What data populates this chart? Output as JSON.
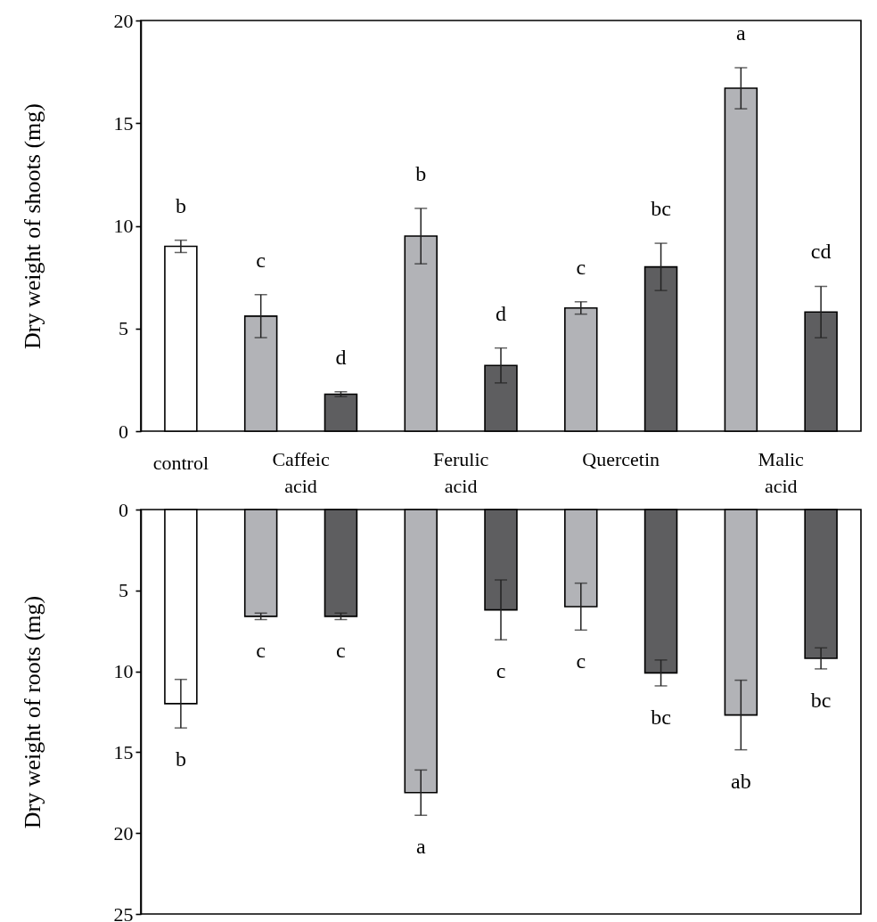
{
  "chart_data": [
    {
      "type": "bar",
      "ylabel": "Dry weight of shoots (mg)",
      "categories": [
        null,
        null,
        null,
        null,
        null,
        null,
        null,
        null,
        null
      ],
      "values": [
        9.0,
        5.6,
        1.8,
        9.5,
        3.2,
        6.0,
        8.0,
        16.7,
        5.8
      ],
      "colors": [
        "#ffffff",
        "#b2b3b7",
        "#5e5e60",
        "#b2b3b7",
        "#5e5e60",
        "#b2b3b7",
        "#5e5e60",
        "#b2b3b7",
        "#5e5e60"
      ],
      "errors": [
        0.3,
        1.05,
        0.12,
        1.35,
        0.85,
        0.3,
        1.15,
        1.0,
        1.25
      ],
      "value_labels": [
        "b",
        "c",
        "d",
        "b",
        "d",
        "c",
        "bc",
        "a",
        "cd"
      ],
      "ylim": [
        0,
        20
      ],
      "yticks": [
        0,
        5,
        10,
        15,
        20
      ],
      "tick_labels": "y",
      "annotations": [
        "control",
        "Caffeic acid",
        "Ferulic acid",
        "Quercetin",
        "Malic acid"
      ]
    },
    {
      "type": "bar",
      "ylabel": "Dry weight of roots (mg)",
      "categories": [
        null,
        null,
        null,
        null,
        null,
        null,
        null,
        null,
        null
      ],
      "values": [
        12.0,
        6.6,
        6.6,
        17.5,
        6.2,
        6.0,
        10.1,
        12.7,
        9.2
      ],
      "colors": [
        "#ffffff",
        "#b2b3b7",
        "#5e5e60",
        "#b2b3b7",
        "#5e5e60",
        "#b2b3b7",
        "#5e5e60",
        "#b2b3b7",
        "#5e5e60"
      ],
      "errors": [
        1.5,
        0.2,
        0.2,
        1.4,
        1.85,
        1.45,
        0.8,
        2.15,
        0.65
      ],
      "value_labels": [
        "b",
        "c",
        "c",
        "a",
        "c",
        "c",
        "bc",
        "ab",
        "bc"
      ],
      "ylim": [
        25,
        0
      ],
      "yticks": [
        0,
        5,
        10,
        15,
        20,
        25
      ],
      "tick_labels": "y"
    }
  ]
}
